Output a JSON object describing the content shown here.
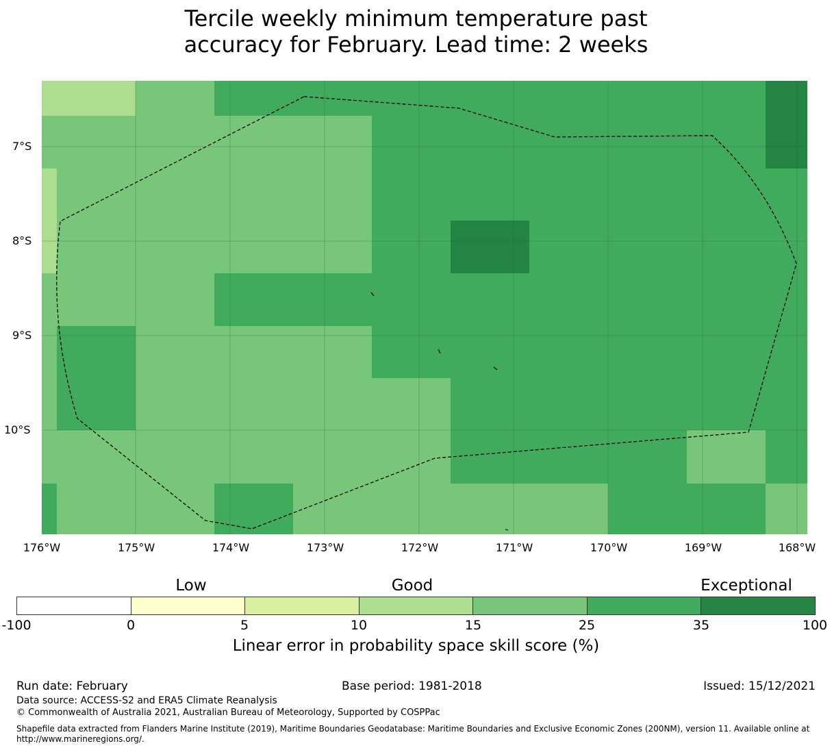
{
  "title": {
    "line1": "Tercile weekly minimum temperature past",
    "line2": "accuracy for February. Lead time: 2 weeks"
  },
  "map": {
    "lat_labels": [
      "7°S",
      "8°S",
      "9°S",
      "10°S"
    ],
    "lon_labels": [
      "176°W",
      "175°W",
      "174°W",
      "173°W",
      "172°W",
      "171°W",
      "170°W",
      "169°W",
      "168°W"
    ],
    "category_labels": {
      "low": "Low",
      "good": "Good",
      "exceptional": "Exceptional"
    }
  },
  "legend": {
    "title": "Linear error in probability space skill score (%)",
    "ticks": [
      "-100",
      "0",
      "5",
      "10",
      "15",
      "25",
      "35",
      "100"
    ],
    "colors": [
      "#ffffff",
      "#ffffcc",
      "#d9f0a3",
      "#addd8e",
      "#78c679",
      "#41ab5d",
      "#238443"
    ]
  },
  "footer": {
    "run_date": "Run date: February",
    "base_period": "Base period: 1981-2018",
    "issued": "Issued: 15/12/2021",
    "data_source": "Data source: ACCESS-S2 and ERA5 Climate Reanalysis",
    "copyright": "© Commonwealth of Australia 2021, Australian Bureau of Meteorology, Supported by COSPPac",
    "shapefile": "Shapefile data extracted from Flanders Marine Institute (2019), Maritime Boundaries Geodatabase: Maritime Boundaries and Exclusive Economic Zones (200NM), version 11. Available online at http://www.marineregions.org/."
  }
}
